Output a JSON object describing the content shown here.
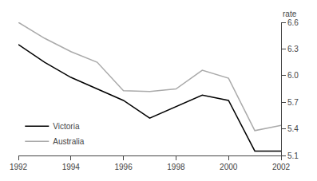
{
  "chart_data": {
    "type": "line",
    "ylabel": "rate",
    "x": [
      1992,
      1993,
      1994,
      1995,
      1996,
      1997,
      1998,
      1999,
      2000,
      2001,
      2002
    ],
    "series": [
      {
        "name": "Victoria",
        "color": "#000000",
        "values": [
          6.35,
          6.15,
          5.98,
          5.85,
          5.72,
          5.52,
          5.65,
          5.78,
          5.72,
          5.15,
          5.15
        ]
      },
      {
        "name": "Australia",
        "color": "#aaaaaa",
        "values": [
          6.6,
          6.42,
          6.27,
          6.15,
          5.83,
          5.82,
          5.85,
          6.06,
          5.97,
          5.38,
          5.44
        ]
      }
    ],
    "xlim": [
      1992,
      2002
    ],
    "xticks": [
      1992,
      1994,
      1996,
      1998,
      2000,
      2002
    ],
    "ylim": [
      5.1,
      6.6
    ],
    "yticks": [
      5.1,
      5.4,
      5.7,
      {
        "value": 6.0,
        "label": "6.0"
      },
      6.3,
      6.6
    ],
    "grid": false,
    "legend": "lower left"
  }
}
